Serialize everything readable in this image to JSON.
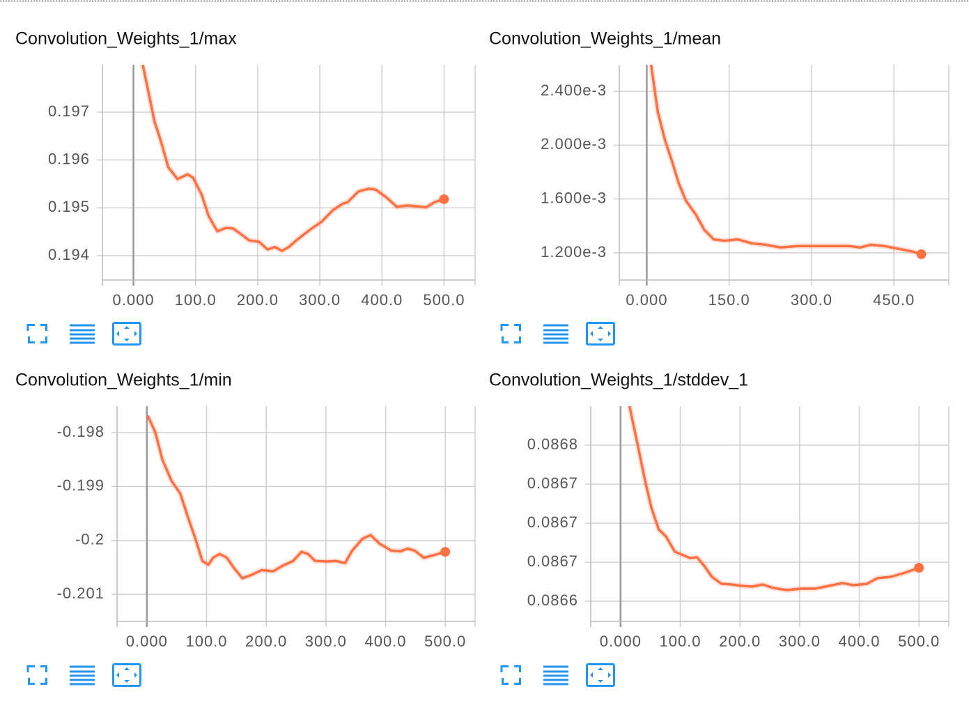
{
  "chart_data": [
    {
      "type": "line",
      "title": "Convolution_Weights_1/max",
      "color": "#ff7043",
      "grid": true,
      "x": [
        15,
        34,
        45,
        56,
        71,
        87,
        96,
        110,
        121,
        135,
        149,
        160,
        171,
        186,
        202,
        216,
        228,
        239,
        250,
        265,
        284,
        303,
        321,
        336,
        345,
        362,
        379,
        390,
        407,
        424,
        441,
        457,
        471,
        485,
        500
      ],
      "values": [
        0.19799,
        0.1968,
        0.19636,
        0.19585,
        0.1956,
        0.1957,
        0.19563,
        0.19527,
        0.19483,
        0.19451,
        0.19458,
        0.19457,
        0.19447,
        0.19432,
        0.19429,
        0.19413,
        0.19418,
        0.1941,
        0.19418,
        0.19435,
        0.19454,
        0.19471,
        0.19495,
        0.19508,
        0.19512,
        0.19534,
        0.1954,
        0.19538,
        0.19522,
        0.19502,
        0.19505,
        0.19503,
        0.19501,
        0.19512,
        0.19518
      ],
      "xlim": [
        -50,
        550
      ],
      "xticks": [
        {
          "value": 0,
          "label": "0.000"
        },
        {
          "value": 100,
          "label": "100.0"
        },
        {
          "value": 200,
          "label": "200.0"
        },
        {
          "value": 300,
          "label": "300.0"
        },
        {
          "value": 400,
          "label": "400.0"
        },
        {
          "value": 500,
          "label": "500.0"
        }
      ],
      "ylim": [
        0.19349,
        0.19799
      ],
      "yticks": [
        0.194,
        0.195,
        0.196,
        0.197
      ]
    },
    {
      "type": "line",
      "title": "Convolution_Weights_1/mean",
      "color": "#ff7043",
      "grid": true,
      "x": [
        8,
        20,
        33,
        46,
        58,
        71,
        90,
        105,
        122,
        141,
        166,
        192,
        217,
        243,
        274,
        306,
        344,
        369,
        389,
        408,
        433,
        459,
        484,
        500
      ],
      "values": [
        0.002597,
        0.00225,
        0.00204,
        0.00188,
        0.00172,
        0.00159,
        0.00148,
        0.00137,
        0.0013,
        0.00129,
        0.0013,
        0.00127,
        0.00126,
        0.00124,
        0.00125,
        0.00125,
        0.00125,
        0.00125,
        0.00124,
        0.00126,
        0.00125,
        0.00123,
        0.00121,
        0.00119
      ],
      "xlim": [
        -50,
        550
      ],
      "xticks": [
        {
          "value": 0,
          "label": "0.000"
        },
        {
          "value": 150,
          "label": "150.0"
        },
        {
          "value": 300,
          "label": "300.0"
        },
        {
          "value": 450,
          "label": "450.0"
        }
      ],
      "ylim": [
        0.000998,
        0.002597
      ],
      "yticks": [
        {
          "value": 0.0012,
          "label": "1.200e-3"
        },
        {
          "value": 0.0016,
          "label": "1.600e-3"
        },
        {
          "value": 0.002,
          "label": "2.000e-3"
        },
        {
          "value": 0.0024,
          "label": "2.400e-3"
        }
      ]
    },
    {
      "type": "line",
      "title": "Convolution_Weights_1/min",
      "color": "#ff7043",
      "grid": true,
      "x": [
        2,
        14,
        26,
        41,
        56,
        68,
        82,
        93,
        103,
        111,
        122,
        134,
        146,
        160,
        175,
        192,
        212,
        227,
        245,
        259,
        270,
        282,
        303,
        317,
        332,
        344,
        361,
        375,
        390,
        410,
        425,
        437,
        449,
        464,
        478,
        500
      ],
      "values": [
        -0.1977,
        -0.19799,
        -0.1985,
        -0.19889,
        -0.19913,
        -0.19954,
        -0.19999,
        -0.20038,
        -0.20045,
        -0.20032,
        -0.20025,
        -0.20032,
        -0.20051,
        -0.2007,
        -0.20064,
        -0.20055,
        -0.20057,
        -0.20047,
        -0.20038,
        -0.20021,
        -0.20025,
        -0.20038,
        -0.20039,
        -0.20038,
        -0.20042,
        -0.20019,
        -0.19997,
        -0.1999,
        -0.20006,
        -0.20019,
        -0.2002,
        -0.20015,
        -0.20019,
        -0.20032,
        -0.20028,
        -0.20021
      ],
      "xlim": [
        -50,
        550
      ],
      "xticks": [
        {
          "value": 0,
          "label": "0.000"
        },
        {
          "value": 100,
          "label": "100.0"
        },
        {
          "value": 200,
          "label": "200.0"
        },
        {
          "value": 300,
          "label": "300.0"
        },
        {
          "value": 400,
          "label": "400.0"
        },
        {
          "value": 500,
          "label": "500.0"
        }
      ],
      "ylim": [
        -0.2015,
        -0.19751
      ],
      "yticks": [
        -0.201,
        -0.2,
        -0.199,
        -0.198
      ]
    },
    {
      "type": "line",
      "title": "Convolution_Weights_1/stddev_1",
      "color": "#ff7043",
      "grid": true,
      "x": [
        15,
        29,
        41,
        52,
        64,
        76,
        91,
        105,
        116,
        128,
        140,
        153,
        169,
        186,
        203,
        221,
        238,
        256,
        279,
        302,
        326,
        349,
        372,
        390,
        413,
        430,
        453,
        477,
        500
      ],
      "values": [
        0.08678,
        0.0867515,
        0.0867265,
        0.0867065,
        0.0866915,
        0.0866865,
        0.0866755,
        0.086673,
        0.086671,
        0.0866715,
        0.0866655,
        0.0866575,
        0.0866525,
        0.086652,
        0.086651,
        0.0866505,
        0.086652,
        0.0866495,
        0.086648,
        0.086649,
        0.086649,
        0.086651,
        0.086653,
        0.0866515,
        0.0866525,
        0.0866565,
        0.0866575,
        0.0866605,
        0.086664
      ],
      "xlim": [
        -50,
        550
      ],
      "xticks": [
        {
          "value": 0,
          "label": "0.000"
        },
        {
          "value": 100,
          "label": "100.0"
        },
        {
          "value": 200,
          "label": "200.0"
        },
        {
          "value": 300,
          "label": "300.0"
        },
        {
          "value": 400,
          "label": "400.0"
        },
        {
          "value": 500,
          "label": "500.0"
        }
      ],
      "ylim": [
        0.0866255,
        0.08678
      ],
      "yticks": [
        {
          "value": 0.08664,
          "label": "0.0866"
        },
        {
          "value": 0.086668,
          "label": "0.0867"
        },
        {
          "value": 0.086696,
          "label": "0.0867"
        },
        {
          "value": 0.086724,
          "label": "0.0867"
        },
        {
          "value": 0.086752,
          "label": "0.0868"
        }
      ]
    }
  ]
}
